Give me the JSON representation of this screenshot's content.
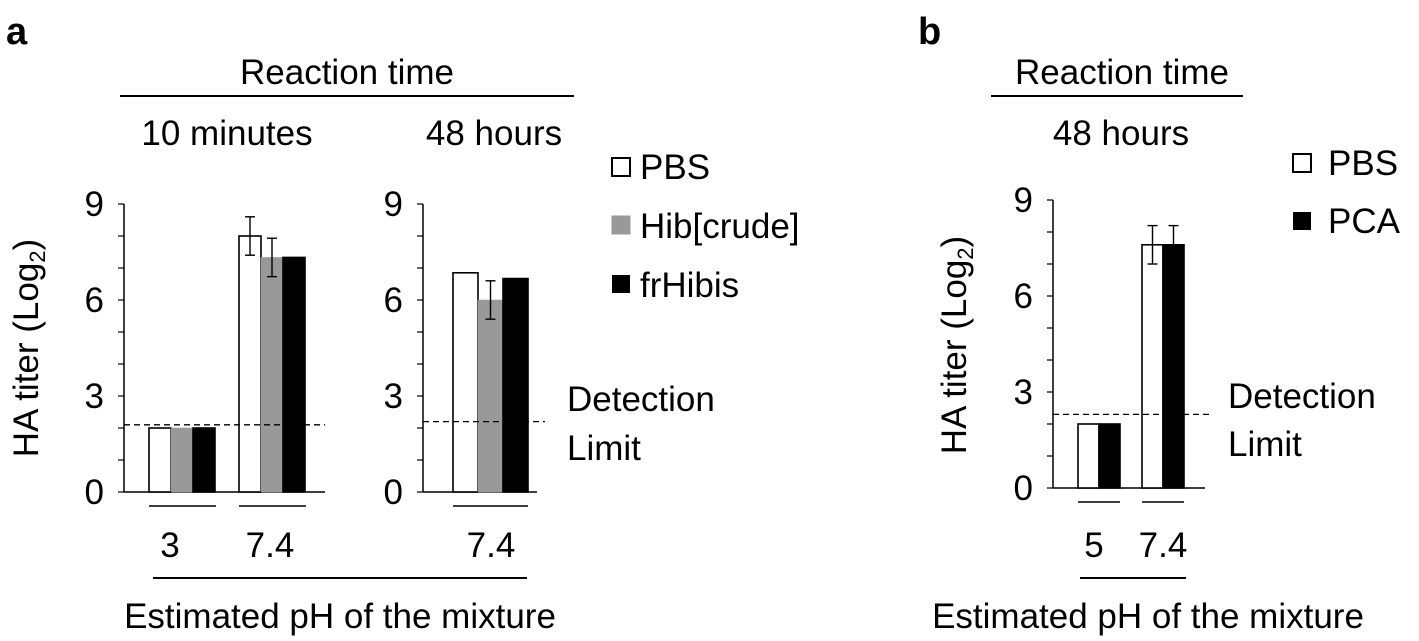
{
  "figure": {
    "panel_a": {
      "label": "a",
      "header": "Reaction time",
      "subheaders": [
        "10 minutes",
        "48 hours"
      ],
      "ylabel_main": "HA titer (Log",
      "ylabel_sub": "2",
      "ylabel_close": ")",
      "xlabel": "Estimated pH of the mixture",
      "legend": [
        "PBS",
        "Hib[crude]",
        "frHibis"
      ],
      "detection_label": [
        "Detection",
        "Limit"
      ]
    },
    "panel_b": {
      "label": "b",
      "header": "Reaction time",
      "subheaders": [
        "48 hours"
      ],
      "ylabel_main": "HA titer (Log",
      "ylabel_sub": "2",
      "ylabel_close": ")",
      "xlabel": "Estimated pH of the mixture",
      "legend": [
        "PBS",
        "PCA"
      ],
      "detection_label": [
        "Detection",
        "Limit"
      ]
    }
  },
  "chart_data": [
    {
      "type": "bar",
      "panel": "a",
      "subplot": "10 minutes",
      "categories": [
        "3",
        "7.4"
      ],
      "series": [
        {
          "name": "PBS",
          "color": "#ffffff",
          "values": [
            2,
            8
          ],
          "errors": [
            0,
            0.6
          ]
        },
        {
          "name": "Hib[crude]",
          "color": "#999999",
          "values": [
            2,
            7.33
          ],
          "errors": [
            0,
            0.6
          ]
        },
        {
          "name": "frHibis",
          "color": "#000000",
          "values": [
            2,
            7.33
          ],
          "errors": [
            0,
            0
          ]
        }
      ],
      "yticks": [
        "0",
        "3",
        "6",
        "9"
      ],
      "ylim": [
        0,
        9
      ],
      "detection_limit": 2.1
    },
    {
      "type": "bar",
      "panel": "a",
      "subplot": "48 hours",
      "categories": [
        "7.4"
      ],
      "series": [
        {
          "name": "PBS",
          "color": "#ffffff",
          "values": [
            6.85
          ],
          "errors": [
            0
          ]
        },
        {
          "name": "Hib[crude]",
          "color": "#999999",
          "values": [
            6
          ],
          "errors": [
            0.6
          ]
        },
        {
          "name": "frHibis",
          "color": "#000000",
          "values": [
            6.67
          ],
          "errors": [
            0
          ]
        }
      ],
      "yticks": [
        "0",
        "3",
        "6",
        "9"
      ],
      "ylim": [
        0,
        9
      ],
      "detection_limit": 2.2
    },
    {
      "type": "bar",
      "panel": "b",
      "subplot": "48 hours",
      "categories": [
        "5",
        "7.4"
      ],
      "series": [
        {
          "name": "PBS",
          "color": "#ffffff",
          "values": [
            2,
            7.6
          ],
          "errors": [
            0,
            0.6
          ]
        },
        {
          "name": "PCA",
          "color": "#000000",
          "values": [
            2,
            7.6
          ],
          "errors": [
            0,
            0.6
          ]
        }
      ],
      "yticks": [
        "0",
        "3",
        "6",
        "9"
      ],
      "ylim": [
        0,
        9
      ],
      "detection_limit": 2.3
    }
  ]
}
